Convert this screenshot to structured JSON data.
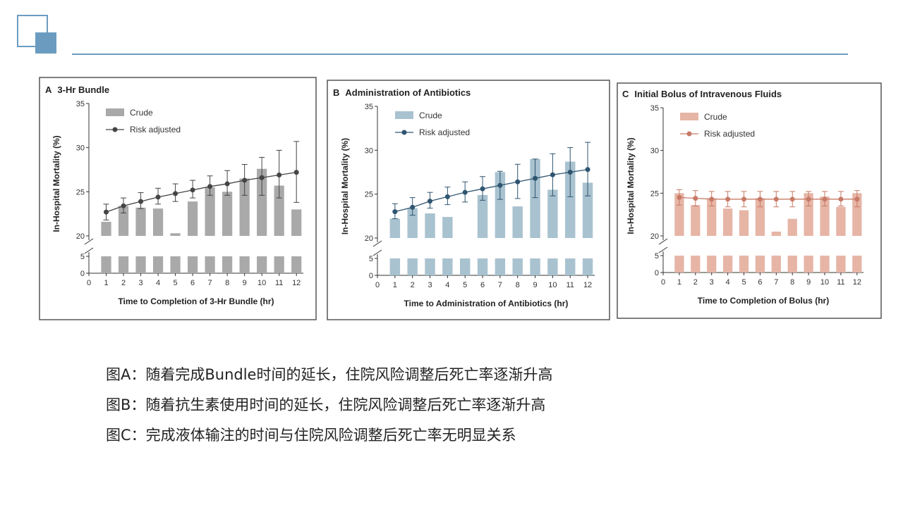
{
  "captions": {
    "a": "图A：随着完成Bundle时间的延长，住院风险调整后死亡率逐渐升高",
    "b": "图B：随着抗生素使用时间的延长，住院风险调整后死亡率逐渐升高",
    "c": "图C：完成液体输注的时间与住院风险调整后死亡率无明显关系"
  },
  "chart_data": [
    {
      "type": "bar",
      "panel_letter": "A",
      "title": "3-Hr Bundle",
      "xlabel": "Time to Completion of 3-Hr Bundle (hr)",
      "ylabel": "In-Hospital Mortality (%)",
      "x_ticks": [
        "0",
        "1",
        "2",
        "3",
        "4",
        "5",
        "6",
        "7",
        "8",
        "9",
        "10",
        "11",
        "12"
      ],
      "categories": [
        1,
        2,
        3,
        4,
        5,
        6,
        7,
        8,
        9,
        10,
        11,
        12
      ],
      "y_ticks_upper": [
        "20",
        "25",
        "30",
        "35"
      ],
      "y_ticks_lower": [
        "0",
        "5"
      ],
      "ylim_upper": [
        20,
        35
      ],
      "ylim_lower": [
        0,
        5
      ],
      "legend": {
        "crude": "Crude",
        "adjusted": "Risk adjusted",
        "position": "top-left"
      },
      "bar_color": "#a9a9a9",
      "line_color": "#444444",
      "series": [
        {
          "name": "Crude",
          "kind": "bar",
          "values": [
            21.6,
            23.4,
            23.2,
            23.1,
            20.3,
            23.9,
            25.5,
            25.0,
            26.5,
            27.6,
            25.7,
            23.0
          ]
        },
        {
          "name": "Risk adjusted",
          "kind": "line",
          "values": [
            22.7,
            23.4,
            23.9,
            24.4,
            24.8,
            25.2,
            25.6,
            25.9,
            26.3,
            26.6,
            26.9,
            27.2
          ],
          "err_low": [
            21.8,
            22.6,
            23.1,
            23.6,
            23.9,
            24.3,
            24.6,
            24.6,
            24.6,
            24.6,
            24.3,
            23.8
          ],
          "err_high": [
            23.6,
            24.3,
            24.9,
            25.4,
            25.9,
            26.3,
            26.8,
            27.4,
            28.1,
            28.9,
            29.7,
            30.7
          ]
        }
      ]
    },
    {
      "type": "bar",
      "panel_letter": "B",
      "title": "Administration of Antibiotics",
      "xlabel": "Time to Administration of Antibiotics (hr)",
      "ylabel": "In-Hospital Mortality (%)",
      "x_ticks": [
        "0",
        "1",
        "2",
        "3",
        "4",
        "5",
        "6",
        "7",
        "8",
        "9",
        "10",
        "11",
        "12"
      ],
      "categories": [
        1,
        2,
        3,
        4,
        5,
        6,
        7,
        8,
        9,
        10,
        11,
        12
      ],
      "y_ticks_upper": [
        "20",
        "25",
        "30",
        "35"
      ],
      "y_ticks_lower": [
        "0",
        "5"
      ],
      "ylim_upper": [
        20,
        35
      ],
      "ylim_lower": [
        0,
        5
      ],
      "legend": {
        "crude": "Crude",
        "adjusted": "Risk adjusted",
        "position": "top-left"
      },
      "bar_color": "#a9c2cf",
      "line_color": "#2f5570",
      "series": [
        {
          "name": "Crude",
          "kind": "bar",
          "values": [
            22.2,
            23.4,
            22.8,
            22.4,
            null,
            24.9,
            27.5,
            23.6,
            29.0,
            25.5,
            28.7,
            26.3
          ]
        },
        {
          "name": "Risk adjusted",
          "kind": "line",
          "values": [
            23.0,
            23.5,
            24.2,
            24.7,
            25.2,
            25.6,
            26.0,
            26.4,
            26.8,
            27.2,
            27.5,
            27.8
          ],
          "err_low": [
            22.2,
            22.6,
            23.4,
            23.8,
            24.1,
            24.3,
            24.4,
            24.5,
            24.6,
            24.8,
            24.7,
            24.8
          ],
          "err_high": [
            23.9,
            24.6,
            25.2,
            25.8,
            26.4,
            27.0,
            27.6,
            28.4,
            29.0,
            29.6,
            30.3,
            30.9
          ]
        }
      ]
    },
    {
      "type": "bar",
      "panel_letter": "C",
      "title": "Initial Bolus of Intravenous Fluids",
      "xlabel": "Time to Completion of Bolus (hr)",
      "ylabel": "In-Hospital Mortality (%)",
      "x_ticks": [
        "0",
        "1",
        "2",
        "3",
        "4",
        "5",
        "6",
        "7",
        "8",
        "9",
        "10",
        "11",
        "12"
      ],
      "categories": [
        1,
        2,
        3,
        4,
        5,
        6,
        7,
        8,
        9,
        10,
        11,
        12
      ],
      "y_ticks_upper": [
        "20",
        "25",
        "30",
        "35"
      ],
      "y_ticks_lower": [
        "0",
        "5"
      ],
      "ylim_upper": [
        20,
        35
      ],
      "ylim_lower": [
        0,
        5
      ],
      "legend": {
        "crude": "Crude",
        "adjusted": "Risk adjusted",
        "position": "top-left"
      },
      "bar_color": "#e6b5a6",
      "line_color": "#c77a66",
      "series": [
        {
          "name": "Crude",
          "kind": "bar",
          "values": [
            25.0,
            23.6,
            24.4,
            23.2,
            23.0,
            24.4,
            20.5,
            22.0,
            25.0,
            24.6,
            23.4,
            25.0
          ]
        },
        {
          "name": "Risk adjusted",
          "kind": "line",
          "values": [
            24.5,
            24.4,
            24.3,
            24.3,
            24.3,
            24.3,
            24.3,
            24.3,
            24.3,
            24.3,
            24.3,
            24.3
          ],
          "err_low": [
            23.6,
            23.5,
            23.5,
            23.4,
            23.4,
            23.4,
            23.4,
            23.4,
            23.5,
            23.5,
            23.5,
            23.4
          ],
          "err_high": [
            25.4,
            25.3,
            25.2,
            25.2,
            25.2,
            25.2,
            25.2,
            25.2,
            25.2,
            25.2,
            25.2,
            25.3
          ]
        }
      ]
    }
  ]
}
